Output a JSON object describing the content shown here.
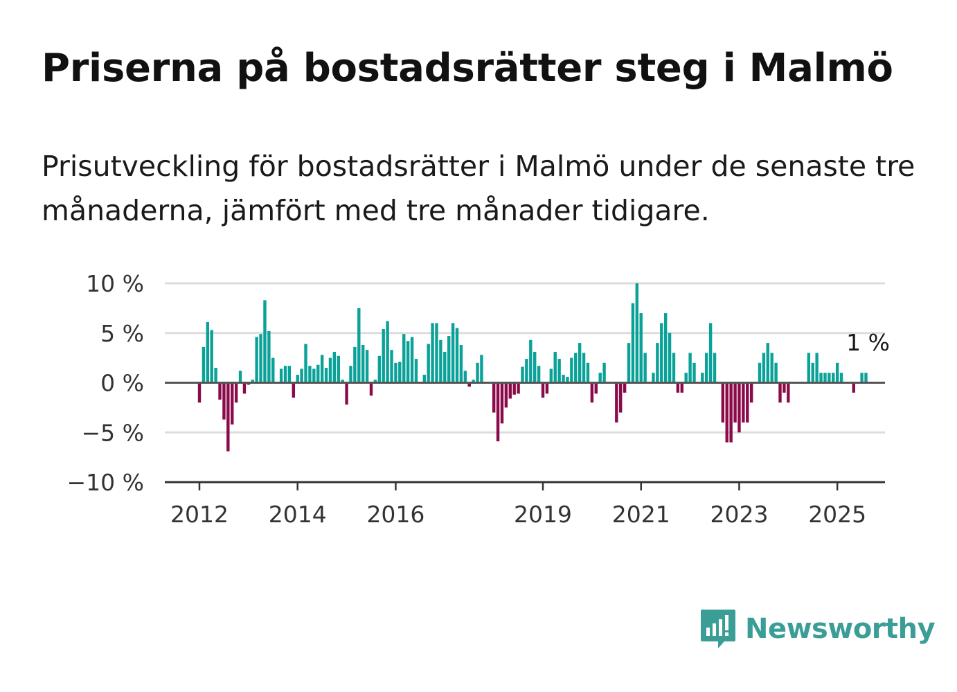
{
  "title": "Priserna på bostadsrätter steg i Malmö",
  "subtitle": "Prisutveckling för bostadsrätter i Malmö under de senaste tre månaderna, jämfört med tre månader tidigare.",
  "brand": {
    "name": "Newsworthy",
    "icon": "newsworthy-logo-icon",
    "color": "#3b9e96"
  },
  "colors": {
    "positive": "#0aa298",
    "negative": "#8b0a4a",
    "grid": "#dddddd",
    "zero_line": "#555555"
  },
  "chart_data": {
    "type": "bar",
    "x_start": "2011-09",
    "x_end": "2025-04",
    "x_unit": "month",
    "ylim": [
      -10,
      10
    ],
    "y_ticks": [
      {
        "value": 10,
        "label": "10 %"
      },
      {
        "value": 5,
        "label": "5 %"
      },
      {
        "value": 0,
        "label": "0 %"
      },
      {
        "value": -5,
        "label": "−5 %"
      },
      {
        "value": -10,
        "label": "−10 %"
      }
    ],
    "x_ticks": [
      {
        "month": "2012-01",
        "label": "2012"
      },
      {
        "month": "2014-01",
        "label": "2014"
      },
      {
        "month": "2016-01",
        "label": "2016"
      },
      {
        "month": "2019-01",
        "label": "2019"
      },
      {
        "month": "2021-01",
        "label": "2021"
      },
      {
        "month": "2023-01",
        "label": "2023"
      },
      {
        "month": "2025-01",
        "label": "2025"
      }
    ],
    "grid": true,
    "last_value_label": "1 %",
    "values": [
      0,
      0,
      0,
      0,
      -2,
      3.6,
      6.1,
      5.3,
      1.5,
      -1.7,
      -3.7,
      -6.9,
      -4.2,
      -2,
      1.2,
      -1.1,
      -0.2,
      0.3,
      4.6,
      4.9,
      8.3,
      5.2,
      2.5,
      0,
      1.4,
      1.7,
      1.7,
      -1.5,
      0.8,
      1.4,
      3.9,
      1.7,
      1.4,
      1.8,
      2.8,
      1.5,
      2.5,
      3.1,
      2.7,
      0.3,
      -2.2,
      1.7,
      3.6,
      7.5,
      3.8,
      3.3,
      -1.3,
      0.3,
      2.7,
      5.4,
      6.2,
      3.3,
      2.0,
      2.1,
      4.9,
      4.2,
      4.6,
      2.4,
      0,
      0.8,
      3.9,
      6.0,
      6.0,
      4.3,
      3.1,
      4.7,
      6.0,
      5.5,
      3.8,
      1.2,
      -0.4,
      0.3,
      2.0,
      2.8,
      0,
      0,
      -3.0,
      -5.9,
      -4.1,
      -2.5,
      -1.6,
      -1.2,
      -1.1,
      1.6,
      2.4,
      4.3,
      3.1,
      1.7,
      -1.5,
      -1.1,
      1.4,
      3.1,
      2.4,
      0.8,
      0.6,
      2.5,
      3.0,
      4.0,
      3.0,
      2.0,
      -2.0,
      -1.1,
      1.0,
      2.0,
      0,
      0,
      -4.0,
      -3.0,
      -1.0,
      4.0,
      8.0,
      10.0,
      7.0,
      3.0,
      0,
      1.0,
      4.0,
      6.0,
      7.0,
      5.0,
      3.0,
      -1.0,
      -1.0,
      1.0,
      3.0,
      2.0,
      0,
      1.0,
      3.0,
      6.0,
      3.0,
      0,
      -4.0,
      -6.0,
      -6.0,
      -4.0,
      -5.0,
      -4.0,
      -4.0,
      -2.0,
      0,
      2.0,
      3.0,
      4.0,
      3.0,
      2.0,
      -2.0,
      -1.0,
      -2.0,
      0,
      0,
      0,
      0,
      3.0,
      2.0,
      3.0,
      1.0,
      1.0,
      1.0,
      1.0,
      2.0,
      1.0,
      0,
      0,
      -1.0,
      0,
      1.0,
      1.0
    ]
  }
}
